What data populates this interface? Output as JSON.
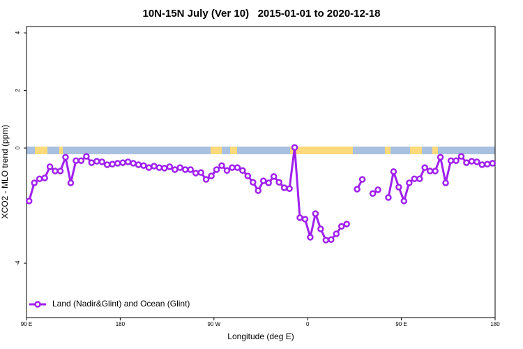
{
  "chart_data": {
    "type": "line",
    "title": "10N-15N July (Ver 10)   2015-01-01 to 2020-12-18",
    "x_label": "Longitude (deg E)",
    "y_label": "XCO2 - MLO trend (ppm)",
    "xlim": [
      90,
      540
    ],
    "ylim": [
      -5.89,
      4.22
    ],
    "xticks": [
      {
        "value": 90,
        "label": "90 E"
      },
      {
        "value": 180,
        "label": "180"
      },
      {
        "value": 270,
        "label": "90 W"
      },
      {
        "value": 360,
        "label": "0"
      },
      {
        "value": 450,
        "label": "90 E"
      },
      {
        "value": 540,
        "label": "180"
      }
    ],
    "yticks": [
      -4,
      0,
      2,
      4
    ],
    "legend": "bottom-left",
    "x": [
      92.5,
      97.5,
      102.5,
      107.5,
      112.5,
      117.5,
      122.5,
      127.5,
      132.5,
      137.5,
      142.5,
      147.5,
      152.5,
      157.5,
      162.5,
      167.5,
      172.5,
      177.5,
      182.5,
      187.5,
      192.5,
      197.5,
      202.5,
      207.5,
      212.5,
      217.5,
      222.5,
      227.5,
      232.5,
      237.5,
      242.5,
      247.5,
      252.5,
      257.5,
      262.5,
      267.5,
      272.5,
      277.5,
      282.5,
      287.5,
      292.5,
      297.5,
      302.5,
      307.5,
      312.5,
      317.5,
      322.5,
      327.5,
      332.5,
      337.5,
      342.5,
      347.5,
      352.5,
      357.5,
      362.5,
      367.5,
      372.5,
      377.5,
      382.5,
      387.5,
      392.5,
      397.5,
      402.5,
      407.5,
      412.5,
      417.5,
      422.5,
      427.5,
      432.5,
      437.5,
      442.5,
      447.5,
      452.5,
      457.5,
      462.5,
      467.5,
      472.5,
      477.5,
      482.5,
      487.5,
      492.5,
      497.5,
      502.5,
      507.5,
      512.5,
      517.5,
      522.5,
      527.5,
      532.5,
      537.5
    ],
    "series": [
      {
        "name": "Land (Nadir&Glint) and Ocean (Glint)",
        "color": "#a020f0",
        "values": [
          -1.84,
          -1.21,
          -1.07,
          -1.04,
          -0.65,
          -0.8,
          -0.8,
          -0.32,
          -1.21,
          -0.44,
          -0.44,
          -0.29,
          -0.51,
          -0.46,
          -0.48,
          -0.58,
          -0.56,
          -0.53,
          -0.51,
          -0.48,
          -0.53,
          -0.58,
          -0.61,
          -0.68,
          -0.63,
          -0.68,
          -0.7,
          -0.65,
          -0.75,
          -0.68,
          -0.75,
          -0.75,
          -0.87,
          -0.85,
          -1.09,
          -0.97,
          -0.75,
          -0.61,
          -0.78,
          -0.68,
          -0.68,
          -0.78,
          -0.97,
          -1.19,
          -1.48,
          -1.14,
          -1.21,
          -0.99,
          -1.19,
          -1.38,
          -1.41,
          0.02,
          -2.42,
          -2.47,
          -3.1,
          -2.28,
          -2.81,
          -3.2,
          -3.18,
          -2.98,
          -2.72,
          -2.64,
          null,
          -1.43,
          -1.09,
          null,
          -1.58,
          -1.45,
          null,
          -1.72,
          -0.82,
          -1.36,
          -1.84,
          -1.21,
          -1.07,
          -1.07,
          -0.68,
          -0.8,
          -0.8,
          -0.32,
          -1.21,
          -0.44,
          -0.44,
          -0.29,
          -0.51,
          -0.46,
          -0.48,
          -0.58,
          -0.56,
          -0.53
        ]
      }
    ]
  }
}
